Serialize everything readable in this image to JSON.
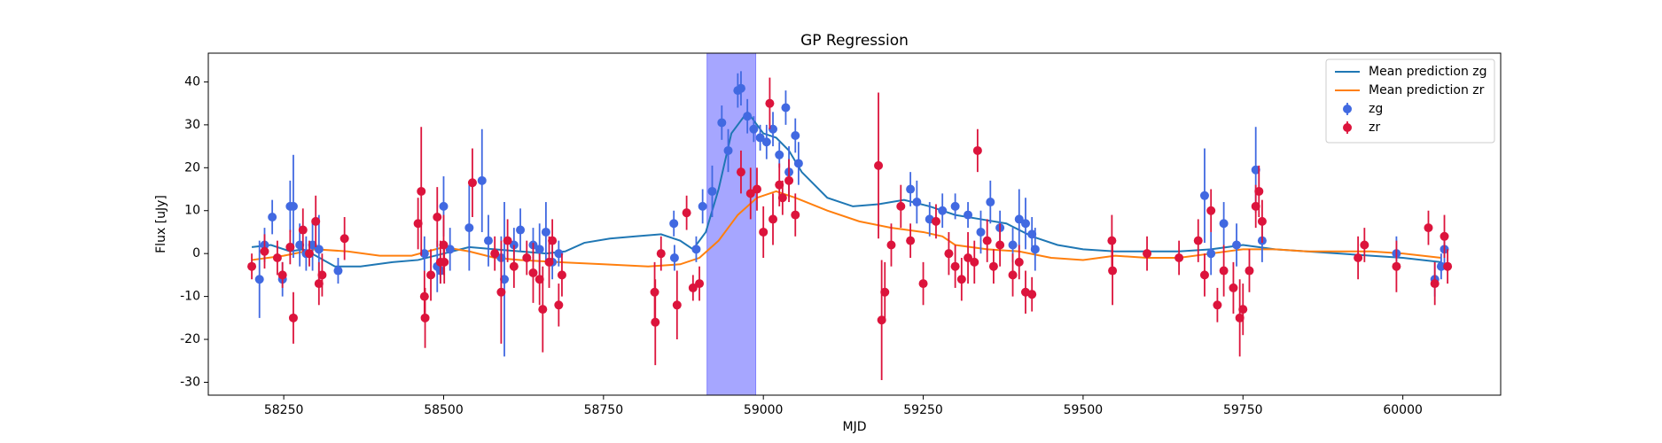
{
  "chart_data": {
    "type": "gp_regression",
    "title": "GP Regression",
    "x_label": "MJD",
    "y_label": "Flux [uJy]",
    "xlim": [
      58132,
      60153
    ],
    "ylim": [
      -33,
      46.7
    ],
    "xticks": [
      58250,
      58500,
      58750,
      59000,
      59250,
      59500,
      59750,
      60000
    ],
    "yticks": [
      -30,
      -20,
      -10,
      0,
      10,
      20,
      30,
      40
    ],
    "highlight_x": [
      58912,
      58988
    ],
    "highlight_color": "#a6a6ff",
    "legend": "upper right",
    "series": [
      {
        "name": "Mean prediction zg",
        "kind": "line",
        "color": "#1f77b4",
        "x": [
          58200,
          58230,
          58260,
          58280,
          58300,
          58330,
          58370,
          58420,
          58460,
          58500,
          58540,
          58580,
          58620,
          58660,
          58690,
          58720,
          58760,
          58800,
          58840,
          58870,
          58890,
          58910,
          58930,
          58950,
          58975,
          59000,
          59020,
          59040,
          59060,
          59100,
          59140,
          59180,
          59220,
          59260,
          59300,
          59340,
          59380,
          59420,
          59460,
          59500,
          59550,
          59600,
          59650,
          59700,
          59750,
          59800,
          59850,
          59900,
          59950,
          60000,
          60060
        ],
        "values": [
          1.5,
          2,
          0.5,
          1,
          -0.5,
          -3,
          -3,
          -2,
          -1.5,
          0,
          1.5,
          1,
          0.5,
          0,
          0.5,
          2.5,
          3.5,
          4,
          4.5,
          3,
          1,
          5,
          15,
          28,
          33,
          28,
          27,
          24,
          19,
          13,
          11,
          11.5,
          12.5,
          11,
          9,
          8,
          7,
          4,
          2,
          1,
          0.5,
          0.5,
          0.5,
          1,
          2,
          1,
          0.5,
          0,
          -0.5,
          -1,
          -2
        ]
      },
      {
        "name": "Mean prediction zr",
        "kind": "line",
        "color": "#ff7f0e",
        "x": [
          58200,
          58250,
          58300,
          58350,
          58400,
          58450,
          58500,
          58540,
          58580,
          58620,
          58680,
          58750,
          58820,
          58870,
          58900,
          58930,
          58960,
          58990,
          59020,
          59050,
          59100,
          59150,
          59200,
          59250,
          59280,
          59300,
          59350,
          59400,
          59450,
          59500,
          59550,
          59600,
          59650,
          59700,
          59750,
          59800,
          59850,
          59900,
          59950,
          60000,
          60060
        ],
        "values": [
          -1.5,
          -0.5,
          1,
          0.5,
          -0.5,
          -0.5,
          1.5,
          0.5,
          -1,
          -1.5,
          -2,
          -2.5,
          -3,
          -2.5,
          -1,
          3,
          9,
          13,
          14.5,
          13,
          10,
          7.5,
          6,
          5,
          4,
          2,
          1,
          0.5,
          -1,
          -1.5,
          -0.5,
          -1,
          -1,
          0,
          1,
          1,
          0.5,
          0.5,
          0.5,
          0,
          -1
        ]
      },
      {
        "name": "zg",
        "kind": "errorbar",
        "color": "#4169e1",
        "x": [
          58212,
          58220,
          58232,
          58248,
          58260,
          58265,
          58275,
          58285,
          58295,
          58305,
          58335,
          58470,
          58490,
          58495,
          58500,
          58510,
          58540,
          58560,
          58570,
          58590,
          58595,
          58610,
          58620,
          58640,
          58650,
          58660,
          58670,
          58680,
          58860,
          58861,
          58895,
          58905,
          58920,
          58935,
          58945,
          58960,
          58965,
          58975,
          58985,
          58995,
          59005,
          59015,
          59025,
          59035,
          59040,
          59050,
          59055,
          59230,
          59240,
          59260,
          59280,
          59300,
          59320,
          59340,
          59355,
          59370,
          59390,
          59400,
          59410,
          59420,
          59425,
          59690,
          59700,
          59720,
          59740,
          59770,
          59780,
          59990,
          60050,
          60060,
          60065
        ],
        "values": [
          -6,
          2,
          8.5,
          -6,
          11,
          11,
          2,
          0,
          2,
          1,
          -4,
          0,
          -3,
          -4,
          11,
          1,
          6,
          17,
          3,
          -1,
          -6,
          2,
          5.5,
          2,
          1,
          5,
          -2,
          0,
          7,
          -1,
          1,
          11,
          14.5,
          30.5,
          24,
          38,
          38.5,
          32,
          29,
          27,
          26,
          29,
          23,
          34,
          19,
          27.5,
          21,
          15,
          12,
          8,
          10,
          11,
          9,
          5,
          12,
          6,
          2,
          8,
          7,
          4.5,
          1,
          13.5,
          0,
          7,
          2,
          19.5,
          3,
          0,
          -6,
          -3,
          1
        ],
        "errors": [
          9,
          4,
          4,
          4,
          6,
          12,
          5,
          4,
          6,
          8,
          3,
          4,
          6,
          3,
          7,
          5,
          10,
          12,
          6,
          5,
          18,
          4,
          5,
          4,
          6,
          7,
          4,
          3,
          3,
          3,
          3,
          4,
          6,
          4,
          5,
          4,
          4,
          4,
          3,
          3,
          4,
          4,
          3,
          4,
          6,
          4,
          5,
          4,
          5,
          4,
          4,
          3,
          3,
          5,
          5,
          4,
          4,
          7,
          6,
          4,
          5,
          11,
          5,
          5,
          5,
          10,
          5,
          4,
          4,
          3,
          4
        ]
      },
      {
        "name": "zr",
        "kind": "errorbar",
        "color": "#dc143c",
        "x": [
          58200,
          58220,
          58240,
          58248,
          58260,
          58265,
          58280,
          58290,
          58300,
          58305,
          58310,
          58345,
          58460,
          58465,
          58470,
          58471,
          58480,
          58490,
          58495,
          58500,
          58501,
          58545,
          58580,
          58590,
          58600,
          58610,
          58630,
          58640,
          58650,
          58655,
          58665,
          58670,
          58680,
          58685,
          58830,
          58831,
          58840,
          58865,
          58880,
          58890,
          58900,
          58965,
          58980,
          58990,
          59000,
          59010,
          59015,
          59025,
          59030,
          59040,
          59050,
          59180,
          59185,
          59190,
          59200,
          59215,
          59230,
          59250,
          59270,
          59290,
          59300,
          59310,
          59320,
          59330,
          59335,
          59350,
          59360,
          59370,
          59390,
          59400,
          59410,
          59420,
          59545,
          59546,
          59600,
          59650,
          59680,
          59690,
          59700,
          59710,
          59720,
          59735,
          59745,
          59750,
          59760,
          59770,
          59775,
          59780,
          59930,
          59940,
          59990,
          60040,
          60050,
          60065,
          60070
        ],
        "values": [
          -3,
          0.5,
          -1,
          -5,
          1.5,
          -15,
          5.5,
          0,
          7.5,
          -7,
          -5,
          3.5,
          7,
          14.5,
          -10,
          -15,
          -5,
          8.5,
          -2,
          2,
          -2,
          16.5,
          0,
          -9,
          3,
          -3,
          -1,
          -4.5,
          -6,
          -13,
          -2,
          3,
          -12,
          -5,
          -9,
          -16,
          0,
          -12,
          9.5,
          -8,
          -7,
          19,
          14,
          15,
          5,
          35,
          8,
          16,
          13,
          17,
          9,
          20.5,
          -15.5,
          -9,
          2,
          11,
          3,
          -7,
          7.5,
          0,
          -3,
          -6,
          -1,
          -2,
          24,
          3,
          -3,
          2,
          -5,
          -2,
          -9,
          -9.5,
          3,
          -4,
          0,
          -1,
          3,
          -5,
          10,
          -12,
          -4,
          -8,
          -15,
          -13,
          -4,
          11,
          14.5,
          7.5,
          -1,
          2,
          -3,
          6,
          -7,
          4,
          -3
        ],
        "errors": [
          3,
          4,
          4,
          3,
          4,
          6,
          5,
          3,
          6,
          5,
          5,
          5,
          6,
          15,
          6,
          7,
          6,
          7,
          5,
          7,
          5,
          8,
          4,
          12,
          5,
          5,
          4,
          7,
          6,
          10,
          6,
          5,
          5,
          5,
          7,
          10,
          4,
          8,
          4,
          3,
          4,
          5,
          6,
          5,
          6,
          6,
          6,
          5,
          4,
          5,
          5,
          17,
          14,
          7,
          5,
          5,
          4,
          5,
          4,
          5,
          5,
          5,
          6,
          5,
          5,
          5,
          4,
          5,
          5,
          4,
          5,
          4,
          6,
          8,
          4,
          4,
          5,
          5,
          5,
          4,
          6,
          6,
          9,
          6,
          5,
          5,
          6,
          5,
          5,
          4,
          6,
          4,
          5,
          5,
          4
        ]
      }
    ]
  }
}
